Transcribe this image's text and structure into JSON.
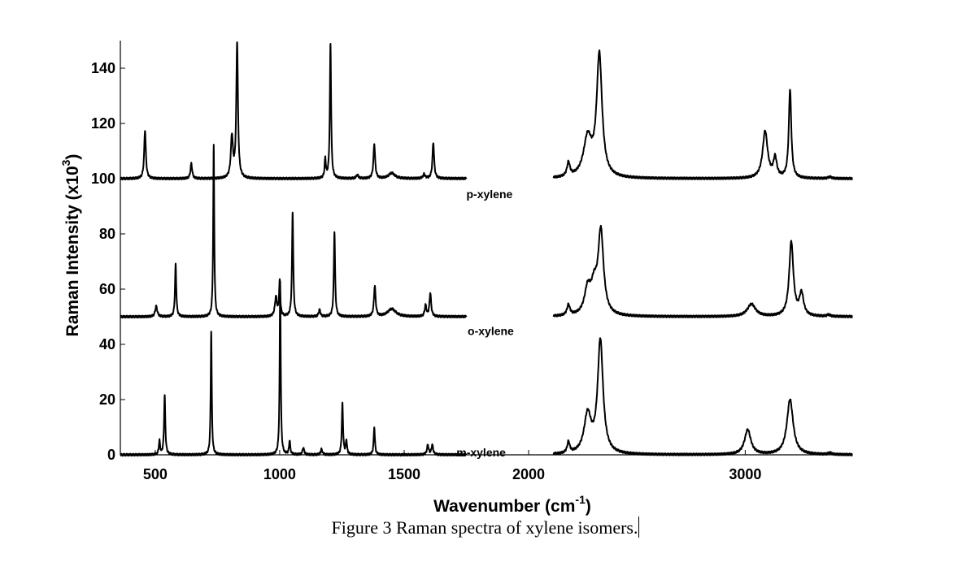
{
  "chart_data": {
    "type": "line",
    "xlabel": "Wavenumber (cm",
    "xlabel_sup": "-1",
    "xlabel_suffix": ")",
    "ylabel": "Raman Intensity (x10",
    "ylabel_sup": "3",
    "ylabel_suffix": ")",
    "xlim": [
      360,
      3300
    ],
    "ylim": [
      0,
      150
    ],
    "x_axis_break": [
      1750,
      2100
    ],
    "x_ticks": [
      500,
      1000,
      1500,
      2000,
      3000
    ],
    "x_tick_positions": [
      500,
      1000,
      1500,
      2000,
      2870
    ],
    "y_ticks": [
      0,
      20,
      40,
      60,
      80,
      100,
      120,
      140
    ],
    "grid": false,
    "series": [
      {
        "name": "p-xylene",
        "label": "p-xylene",
        "baseline": 100,
        "label_x": 1750,
        "label_y": 97,
        "peaks": [
          [
            459,
            17.5,
            4
          ],
          [
            645,
            5.5,
            4
          ],
          [
            808,
            15,
            5
          ],
          [
            829,
            49,
            4
          ],
          [
            1183,
            7,
            3
          ],
          [
            1204,
            49,
            3
          ],
          [
            1312,
            1.3,
            5
          ],
          [
            1380,
            12.5,
            4
          ],
          [
            1450,
            2,
            15
          ],
          [
            1580,
            1.5,
            5
          ],
          [
            1617,
            13,
            4
          ],
          [
            2160,
            5,
            7
          ],
          [
            2237,
            14,
            20
          ],
          [
            2284,
            44,
            13
          ],
          [
            2950,
            17,
            12
          ],
          [
            2990,
            7,
            8
          ],
          [
            3050,
            32,
            6
          ],
          [
            3210,
            0.6,
            8
          ]
        ]
      },
      {
        "name": "o-xylene",
        "label": "o-xylene",
        "baseline": 50,
        "label_x": 1755,
        "label_y": 47.5,
        "peaks": [
          [
            504,
            3.8,
            5
          ],
          [
            582,
            19,
            3
          ],
          [
            735,
            62,
            2.5
          ],
          [
            985,
            7,
            5
          ],
          [
            1000,
            12.5,
            3
          ],
          [
            1052,
            38,
            3
          ],
          [
            1160,
            2.5,
            4
          ],
          [
            1220,
            31,
            3
          ],
          [
            1382,
            11,
            4
          ],
          [
            1450,
            2.8,
            20
          ],
          [
            1586,
            4,
            4
          ],
          [
            1605,
            8.5,
            4
          ],
          [
            2160,
            3.8,
            7
          ],
          [
            2237,
            9,
            15
          ],
          [
            2263,
            9,
            15
          ],
          [
            2290,
            30,
            13
          ],
          [
            2895,
            4.5,
            20
          ],
          [
            3055,
            27,
            10
          ],
          [
            3096,
            8,
            10
          ],
          [
            3205,
            0.6,
            8
          ]
        ]
      },
      {
        "name": "m-xylene",
        "label": "m-xylene",
        "baseline": 0,
        "label_x": 1710,
        "label_y": 3.5,
        "peaks": [
          [
            517,
            5,
            3
          ],
          [
            538,
            21.5,
            3
          ],
          [
            725,
            45,
            2.5
          ],
          [
            1002,
            63,
            2.5
          ],
          [
            1040,
            5,
            3
          ],
          [
            1095,
            2.5,
            4
          ],
          [
            1168,
            2,
            4
          ],
          [
            1252,
            18.5,
            3
          ],
          [
            1268,
            5,
            3
          ],
          [
            1380,
            10,
            3
          ],
          [
            1595,
            3.5,
            4
          ],
          [
            1613,
            3.5,
            4
          ],
          [
            2160,
            4,
            6
          ],
          [
            2237,
            14,
            17
          ],
          [
            2288,
            41,
            13
          ],
          [
            2880,
            9,
            15
          ],
          [
            3050,
            20,
            15
          ],
          [
            3210,
            0.6,
            8
          ]
        ]
      }
    ]
  },
  "caption": "Figure 3 Raman spectra of xylene isomers."
}
